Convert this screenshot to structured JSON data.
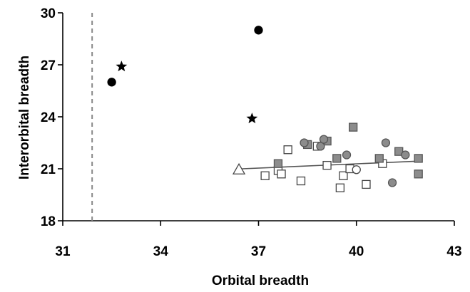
{
  "chart_data": {
    "type": "scatter",
    "title": "",
    "xlabel": "Orbital breadth",
    "ylabel": "Interorbital breadth",
    "xlim": [
      31,
      43
    ],
    "ylim": [
      18,
      30
    ],
    "xticks": [
      31,
      34,
      37,
      40,
      43
    ],
    "yticks": [
      18,
      21,
      24,
      27,
      30
    ],
    "grid": false,
    "legend": "none",
    "reference_line": {
      "x": 31.9,
      "style": "dashed",
      "color": "#888888"
    },
    "trendline": {
      "x": [
        36.5,
        42
      ],
      "y": [
        21.0,
        21.45
      ],
      "color": "#555555"
    },
    "series": [
      {
        "marker": "circle",
        "fill": "#000000",
        "stroke": "#000000",
        "points": [
          [
            32.5,
            26.0
          ],
          [
            37.0,
            29.0
          ]
        ]
      },
      {
        "marker": "star",
        "fill": "#000000",
        "stroke": "#000000",
        "points": [
          [
            32.8,
            26.9
          ],
          [
            36.8,
            23.9
          ]
        ]
      },
      {
        "marker": "triangle",
        "fill": "#ffffff",
        "stroke": "#444444",
        "points": [
          [
            36.4,
            20.95
          ]
        ]
      },
      {
        "marker": "square",
        "fill": "#ffffff",
        "stroke": "#444444",
        "points": [
          [
            37.2,
            20.6
          ],
          [
            37.6,
            20.9
          ],
          [
            37.7,
            20.7
          ],
          [
            37.9,
            22.1
          ],
          [
            38.3,
            20.3
          ],
          [
            38.8,
            22.3
          ],
          [
            39.1,
            21.2
          ],
          [
            39.5,
            19.9
          ],
          [
            39.6,
            20.6
          ],
          [
            39.8,
            21.0
          ],
          [
            40.3,
            20.1
          ],
          [
            40.8,
            21.3
          ]
        ]
      },
      {
        "marker": "circle",
        "fill": "#ffffff",
        "stroke": "#444444",
        "points": [
          [
            40.0,
            20.95
          ]
        ]
      },
      {
        "marker": "square",
        "fill": "#8c8c8c",
        "stroke": "#555555",
        "points": [
          [
            37.6,
            21.3
          ],
          [
            38.5,
            22.4
          ],
          [
            39.1,
            22.6
          ],
          [
            39.4,
            21.6
          ],
          [
            39.9,
            23.4
          ],
          [
            40.7,
            21.6
          ],
          [
            41.3,
            22.0
          ],
          [
            41.9,
            21.6
          ],
          [
            41.9,
            20.7
          ]
        ]
      },
      {
        "marker": "circle",
        "fill": "#8c8c8c",
        "stroke": "#555555",
        "points": [
          [
            38.4,
            22.5
          ],
          [
            38.9,
            22.3
          ],
          [
            39.0,
            22.7
          ],
          [
            39.7,
            21.8
          ],
          [
            40.9,
            22.5
          ],
          [
            41.5,
            21.8
          ],
          [
            41.1,
            20.2
          ]
        ]
      }
    ]
  }
}
